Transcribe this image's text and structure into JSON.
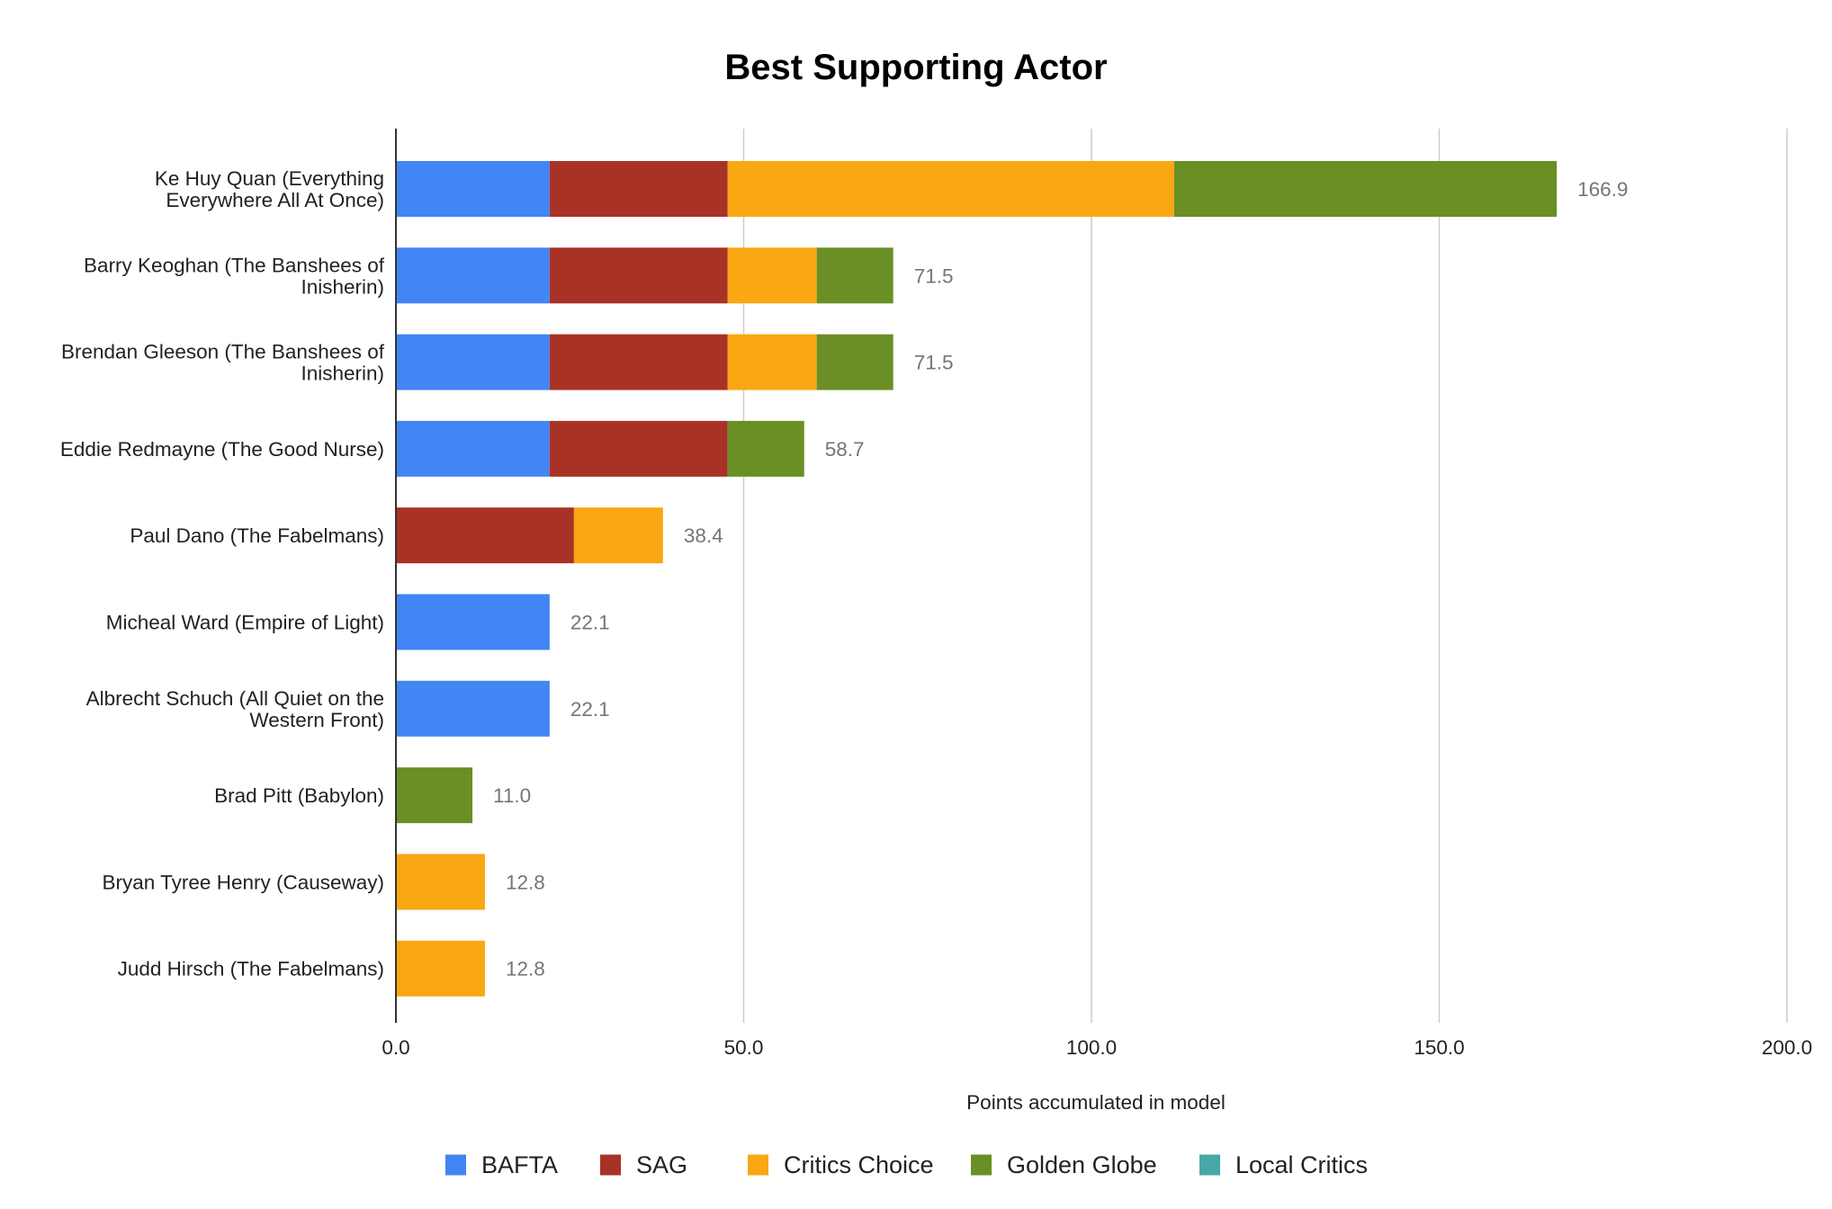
{
  "chart_data": {
    "type": "bar",
    "orientation": "horizontal",
    "stacked": true,
    "title": "Best Supporting Actor",
    "xlabel": "Points accumulated in model",
    "ylabel": "",
    "xlim": [
      0,
      200
    ],
    "xticks": [
      "0.0",
      "50.0",
      "100.0",
      "150.0",
      "200.0"
    ],
    "grid": true,
    "legend_position": "bottom",
    "categories": [
      [
        "Ke Huy Quan (Everything",
        "Everywhere All At Once)"
      ],
      [
        "Barry Keoghan (The Banshees of",
        "Inisherin)"
      ],
      [
        "Brendan Gleeson (The Banshees of",
        "Inisherin)"
      ],
      [
        "Eddie Redmayne (The Good Nurse)"
      ],
      [
        "Paul Dano (The Fabelmans)"
      ],
      [
        "Micheal Ward (Empire of Light)"
      ],
      [
        "Albrecht Schuch (All Quiet on the",
        "Western Front)"
      ],
      [
        "Brad Pitt (Babylon)"
      ],
      [
        "Bryan Tyree Henry (Causeway)"
      ],
      [
        "Judd Hirsch (The Fabelmans)"
      ]
    ],
    "series": [
      {
        "name": "BAFTA",
        "color": "#4285F4",
        "values": [
          22.1,
          22.1,
          22.1,
          22.1,
          0,
          22.1,
          22.1,
          0,
          0,
          0
        ]
      },
      {
        "name": "SAG",
        "color": "#A93226",
        "values": [
          25.6,
          25.6,
          25.6,
          25.6,
          25.6,
          0,
          0,
          0,
          0,
          0
        ]
      },
      {
        "name": "Critics Choice",
        "color": "#F9A713",
        "values": [
          64.2,
          12.8,
          12.8,
          0,
          12.8,
          0,
          0,
          0,
          12.8,
          12.8
        ]
      },
      {
        "name": "Golden Globe",
        "color": "#6A8F25",
        "values": [
          55.0,
          11.0,
          11.0,
          11.0,
          0,
          0,
          0,
          11.0,
          0,
          0
        ]
      },
      {
        "name": "Local Critics",
        "color": "#46A8A8",
        "values": [
          0,
          0,
          0,
          0,
          0,
          0,
          0,
          0,
          0,
          0
        ]
      }
    ],
    "totals": [
      "166.9",
      "71.5",
      "71.5",
      "58.7",
      "38.4",
      "22.1",
      "22.1",
      "11.0",
      "12.8",
      "12.8"
    ]
  }
}
